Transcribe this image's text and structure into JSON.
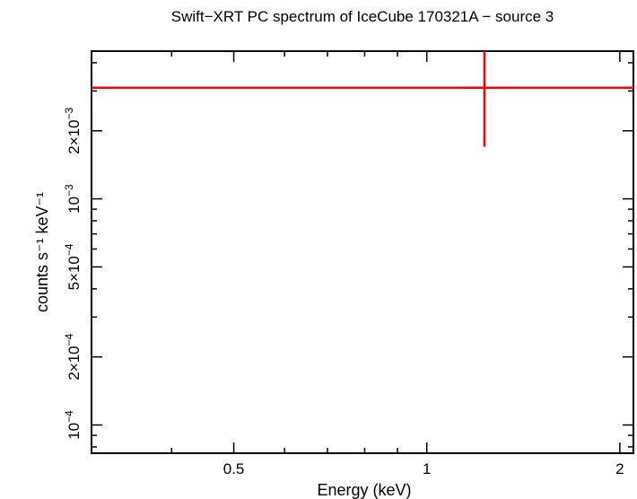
{
  "chart_data": {
    "type": "scatter",
    "title": "Swift−XRT PC spectrum of IceCube 170321A − source 3",
    "xlabel": "Energy (keV)",
    "ylabel": "counts s⁻¹ keV⁻¹",
    "x_scale": "log",
    "y_scale": "log",
    "xlim": [
      0.3,
      2.1
    ],
    "ylim": [
      7.5e-05,
      0.0045
    ],
    "x_ticks": [
      {
        "value": 0.5,
        "label": "0.5"
      },
      {
        "value": 1,
        "label": "1"
      },
      {
        "value": 2,
        "label": "2"
      }
    ],
    "y_ticks": [
      {
        "value": 0.0001,
        "mant": "10",
        "exp": "−4"
      },
      {
        "value": 0.0002,
        "mant": "2×10",
        "exp": "−4"
      },
      {
        "value": 0.0005,
        "mant": "5×10",
        "exp": "−4"
      },
      {
        "value": 0.001,
        "mant": "10",
        "exp": "−3"
      },
      {
        "value": 0.002,
        "mant": "2×10",
        "exp": "−3"
      }
    ],
    "series": [
      {
        "color": "#ff0000",
        "points": [
          {
            "x": 1.23,
            "x_low": 0.3,
            "x_high": 2.1,
            "y": 0.0031,
            "y_low": 0.0017,
            "y_high": 0.0045
          }
        ]
      }
    ],
    "grid": false
  }
}
